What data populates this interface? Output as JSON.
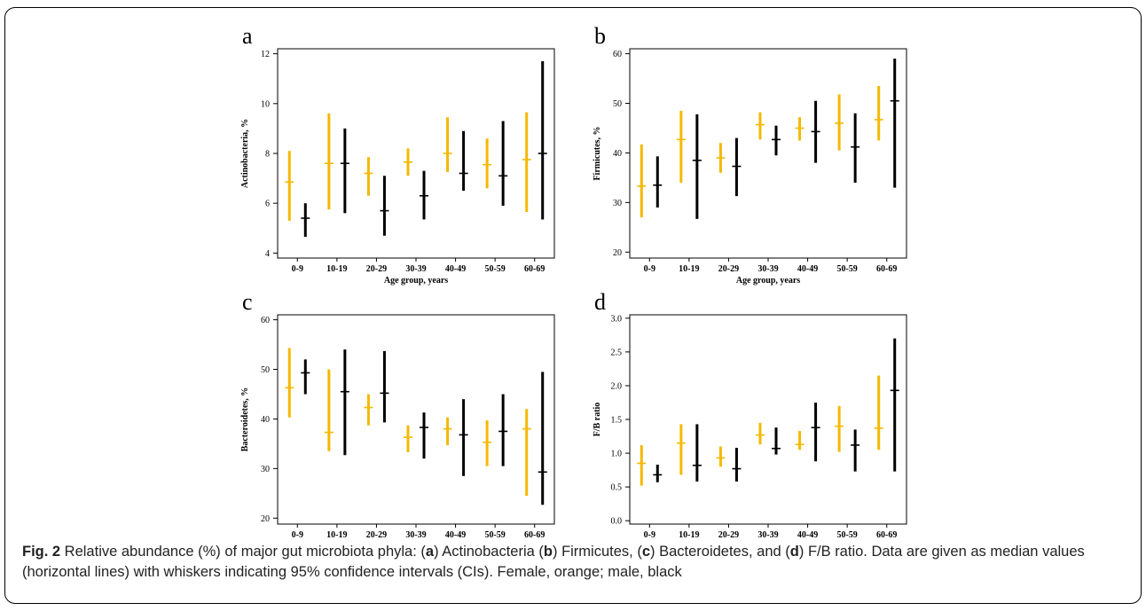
{
  "chart_data": [
    {
      "type": "errorbar",
      "panel_label": "a",
      "xlabel": "Age group, years",
      "ylabel": "Actinobacteria, %",
      "ylim": [
        3.8,
        12.2
      ],
      "yticks": [
        4,
        6,
        8,
        10,
        12
      ],
      "categories": [
        "0-9",
        "10-19",
        "20-29",
        "30-39",
        "40-49",
        "50-59",
        "60-69"
      ],
      "series": [
        {
          "color": "#f5b800",
          "median": [
            6.85,
            7.6,
            7.2,
            7.65,
            8.0,
            7.55,
            7.75
          ],
          "lower": [
            5.3,
            5.75,
            6.3,
            7.1,
            7.25,
            6.6,
            5.65
          ],
          "upper": [
            8.1,
            9.6,
            7.85,
            8.2,
            9.45,
            8.6,
            9.65
          ]
        },
        {
          "color": "#000000",
          "median": [
            5.4,
            7.6,
            5.7,
            6.3,
            7.2,
            7.1,
            8.0
          ],
          "lower": [
            4.65,
            5.6,
            4.7,
            5.35,
            6.5,
            5.9,
            5.35
          ],
          "upper": [
            6.0,
            9.0,
            7.1,
            7.3,
            8.9,
            9.3,
            11.7
          ]
        }
      ]
    },
    {
      "type": "errorbar",
      "panel_label": "b",
      "xlabel": "Age group, years",
      "ylabel": "Firmicutes, %",
      "ylim": [
        18.8,
        61
      ],
      "yticks": [
        20,
        30,
        40,
        50,
        60
      ],
      "categories": [
        "0-9",
        "10-19",
        "20-29",
        "30-39",
        "40-49",
        "50-59",
        "60-69"
      ],
      "series": [
        {
          "color": "#f5b800",
          "median": [
            33.3,
            42.7,
            39.0,
            45.7,
            45.0,
            46.0,
            46.7
          ],
          "lower": [
            27.0,
            34.0,
            36.0,
            42.7,
            42.5,
            40.5,
            42.5
          ],
          "upper": [
            41.7,
            48.5,
            42.0,
            48.2,
            47.2,
            51.8,
            53.5
          ]
        },
        {
          "color": "#000000",
          "median": [
            33.5,
            38.5,
            37.3,
            42.7,
            44.3,
            41.2,
            50.5
          ],
          "lower": [
            29.0,
            26.7,
            31.3,
            39.5,
            38.0,
            34.0,
            33.0
          ],
          "upper": [
            39.3,
            47.8,
            43.0,
            45.5,
            50.5,
            48.0,
            59.0
          ]
        }
      ]
    },
    {
      "type": "errorbar",
      "panel_label": "c",
      "xlabel": "Age group, years",
      "ylabel": "Bacteroidetes, %",
      "ylim": [
        18.8,
        61
      ],
      "yticks": [
        20,
        30,
        40,
        50,
        60
      ],
      "categories": [
        "0-9",
        "10-19",
        "20-29",
        "30-39",
        "40-49",
        "50-59",
        "60-69"
      ],
      "series": [
        {
          "color": "#f5b800",
          "median": [
            46.3,
            37.3,
            42.3,
            36.3,
            38.0,
            35.3,
            38.0
          ],
          "lower": [
            40.3,
            33.5,
            38.7,
            33.3,
            34.7,
            30.5,
            24.5
          ],
          "upper": [
            54.3,
            50.0,
            45.0,
            38.7,
            40.3,
            39.7,
            42.0
          ]
        },
        {
          "color": "#000000",
          "median": [
            49.3,
            45.5,
            45.2,
            38.3,
            36.8,
            37.5,
            29.3
          ],
          "lower": [
            45.0,
            32.7,
            39.3,
            32.0,
            28.5,
            30.5,
            22.7
          ],
          "upper": [
            52.0,
            54.0,
            53.7,
            41.3,
            44.0,
            45.0,
            49.5
          ]
        }
      ]
    },
    {
      "type": "errorbar",
      "panel_label": "d",
      "xlabel": "Age group, years",
      "ylabel": "F/B ratio",
      "ylim": [
        -0.05,
        3.05
      ],
      "yticks": [
        "0.0",
        "0.5",
        "1.0",
        "1.5",
        "2.0",
        "2.5",
        "3.0"
      ],
      "categories": [
        "0-9",
        "10-19",
        "20-29",
        "30-39",
        "40-49",
        "50-59",
        "60-69"
      ],
      "series": [
        {
          "color": "#f5b800",
          "median": [
            0.85,
            1.15,
            0.93,
            1.27,
            1.13,
            1.4,
            1.37
          ],
          "lower": [
            0.52,
            0.68,
            0.8,
            1.13,
            1.05,
            1.02,
            1.05
          ],
          "upper": [
            1.12,
            1.43,
            1.1,
            1.45,
            1.33,
            1.7,
            2.15
          ]
        },
        {
          "color": "#000000",
          "median": [
            0.68,
            0.82,
            0.77,
            1.07,
            1.38,
            1.12,
            1.93
          ],
          "lower": [
            0.57,
            0.58,
            0.58,
            0.98,
            0.88,
            0.73,
            0.73
          ],
          "upper": [
            0.83,
            1.43,
            1.08,
            1.38,
            1.75,
            1.35,
            2.7
          ]
        }
      ]
    }
  ],
  "caption": {
    "label": "Fig. 2",
    "text_parts": [
      " Relative abundance (%) of major gut microbiota phyla: (",
      "a",
      ") Actinobacteria (",
      "b",
      ") Firmicutes, (",
      "c",
      ") Bacteroidetes, and (",
      "d",
      ") F/B ratio. Data are given as median values (horizontal lines) with whiskers indicating 95% confidence intervals (CIs). Female, orange; male, black"
    ]
  }
}
